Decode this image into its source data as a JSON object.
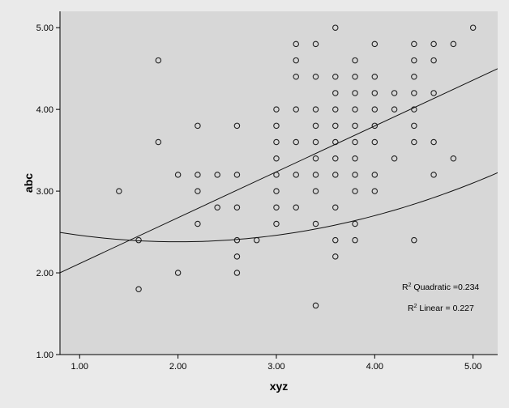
{
  "chart_data": {
    "type": "scatter",
    "xlabel": "xyz",
    "ylabel": "abc",
    "xlim": [
      0.8,
      5.25
    ],
    "ylim": [
      1.0,
      5.2
    ],
    "xticks": [
      1.0,
      2.0,
      3.0,
      4.0,
      5.0
    ],
    "xtick_labels": [
      "1.00",
      "2.00",
      "3.00",
      "4.00",
      "5.00"
    ],
    "yticks": [
      1.0,
      2.0,
      3.0,
      4.0,
      5.0
    ],
    "ytick_labels": [
      "1.00",
      "2.00",
      "3.00",
      "4.00",
      "5.00"
    ],
    "grid": false,
    "points": [
      [
        1.4,
        3.0
      ],
      [
        1.6,
        2.4
      ],
      [
        1.6,
        1.8
      ],
      [
        1.8,
        4.6
      ],
      [
        1.8,
        3.6
      ],
      [
        2.0,
        3.2
      ],
      [
        2.0,
        2.0
      ],
      [
        2.2,
        3.8
      ],
      [
        2.2,
        3.2
      ],
      [
        2.2,
        3.0
      ],
      [
        2.2,
        2.6
      ],
      [
        2.4,
        3.2
      ],
      [
        2.4,
        2.8
      ],
      [
        2.6,
        3.8
      ],
      [
        2.6,
        3.2
      ],
      [
        2.6,
        2.8
      ],
      [
        2.6,
        2.4
      ],
      [
        2.6,
        2.2
      ],
      [
        2.6,
        2.0
      ],
      [
        2.8,
        2.4
      ],
      [
        3.0,
        4.0
      ],
      [
        3.0,
        3.8
      ],
      [
        3.0,
        3.6
      ],
      [
        3.0,
        3.4
      ],
      [
        3.0,
        3.2
      ],
      [
        3.0,
        3.0
      ],
      [
        3.0,
        2.8
      ],
      [
        3.0,
        2.6
      ],
      [
        3.2,
        4.8
      ],
      [
        3.2,
        4.6
      ],
      [
        3.2,
        4.4
      ],
      [
        3.2,
        4.0
      ],
      [
        3.2,
        3.6
      ],
      [
        3.2,
        3.2
      ],
      [
        3.2,
        2.8
      ],
      [
        3.4,
        4.8
      ],
      [
        3.4,
        4.4
      ],
      [
        3.4,
        4.0
      ],
      [
        3.4,
        3.8
      ],
      [
        3.4,
        3.6
      ],
      [
        3.4,
        3.4
      ],
      [
        3.4,
        3.2
      ],
      [
        3.4,
        3.0
      ],
      [
        3.4,
        2.6
      ],
      [
        3.4,
        1.6
      ],
      [
        3.6,
        5.0
      ],
      [
        3.6,
        4.4
      ],
      [
        3.6,
        4.2
      ],
      [
        3.6,
        4.0
      ],
      [
        3.6,
        3.8
      ],
      [
        3.6,
        3.6
      ],
      [
        3.6,
        3.4
      ],
      [
        3.6,
        3.2
      ],
      [
        3.6,
        2.8
      ],
      [
        3.6,
        2.4
      ],
      [
        3.6,
        2.2
      ],
      [
        3.8,
        4.6
      ],
      [
        3.8,
        4.4
      ],
      [
        3.8,
        4.2
      ],
      [
        3.8,
        4.0
      ],
      [
        3.8,
        3.8
      ],
      [
        3.8,
        3.6
      ],
      [
        3.8,
        3.4
      ],
      [
        3.8,
        3.2
      ],
      [
        3.8,
        3.0
      ],
      [
        3.8,
        2.6
      ],
      [
        3.8,
        2.4
      ],
      [
        4.0,
        4.8
      ],
      [
        4.0,
        4.4
      ],
      [
        4.0,
        4.2
      ],
      [
        4.0,
        4.0
      ],
      [
        4.0,
        3.8
      ],
      [
        4.0,
        3.6
      ],
      [
        4.0,
        3.2
      ],
      [
        4.0,
        3.0
      ],
      [
        4.2,
        4.2
      ],
      [
        4.2,
        4.0
      ],
      [
        4.2,
        3.4
      ],
      [
        4.4,
        4.8
      ],
      [
        4.4,
        4.6
      ],
      [
        4.4,
        4.4
      ],
      [
        4.4,
        4.2
      ],
      [
        4.4,
        4.0
      ],
      [
        4.4,
        3.8
      ],
      [
        4.4,
        3.6
      ],
      [
        4.4,
        2.4
      ],
      [
        4.6,
        4.8
      ],
      [
        4.6,
        4.6
      ],
      [
        4.6,
        4.2
      ],
      [
        4.6,
        3.6
      ],
      [
        4.6,
        3.2
      ],
      [
        4.8,
        4.8
      ],
      [
        4.8,
        3.4
      ],
      [
        5.0,
        5.0
      ]
    ],
    "linear_fit": {
      "intercept": 1.553,
      "slope": 0.561
    },
    "quadratic_fit": {
      "a": 2.7,
      "b": -0.32,
      "c": 0.08
    },
    "annotations": [
      {
        "prefix": "R",
        "sup": "2",
        "text": " Quadratic =0.234"
      },
      {
        "prefix": "R",
        "sup": "2",
        "text": " Linear = 0.227"
      }
    ]
  }
}
